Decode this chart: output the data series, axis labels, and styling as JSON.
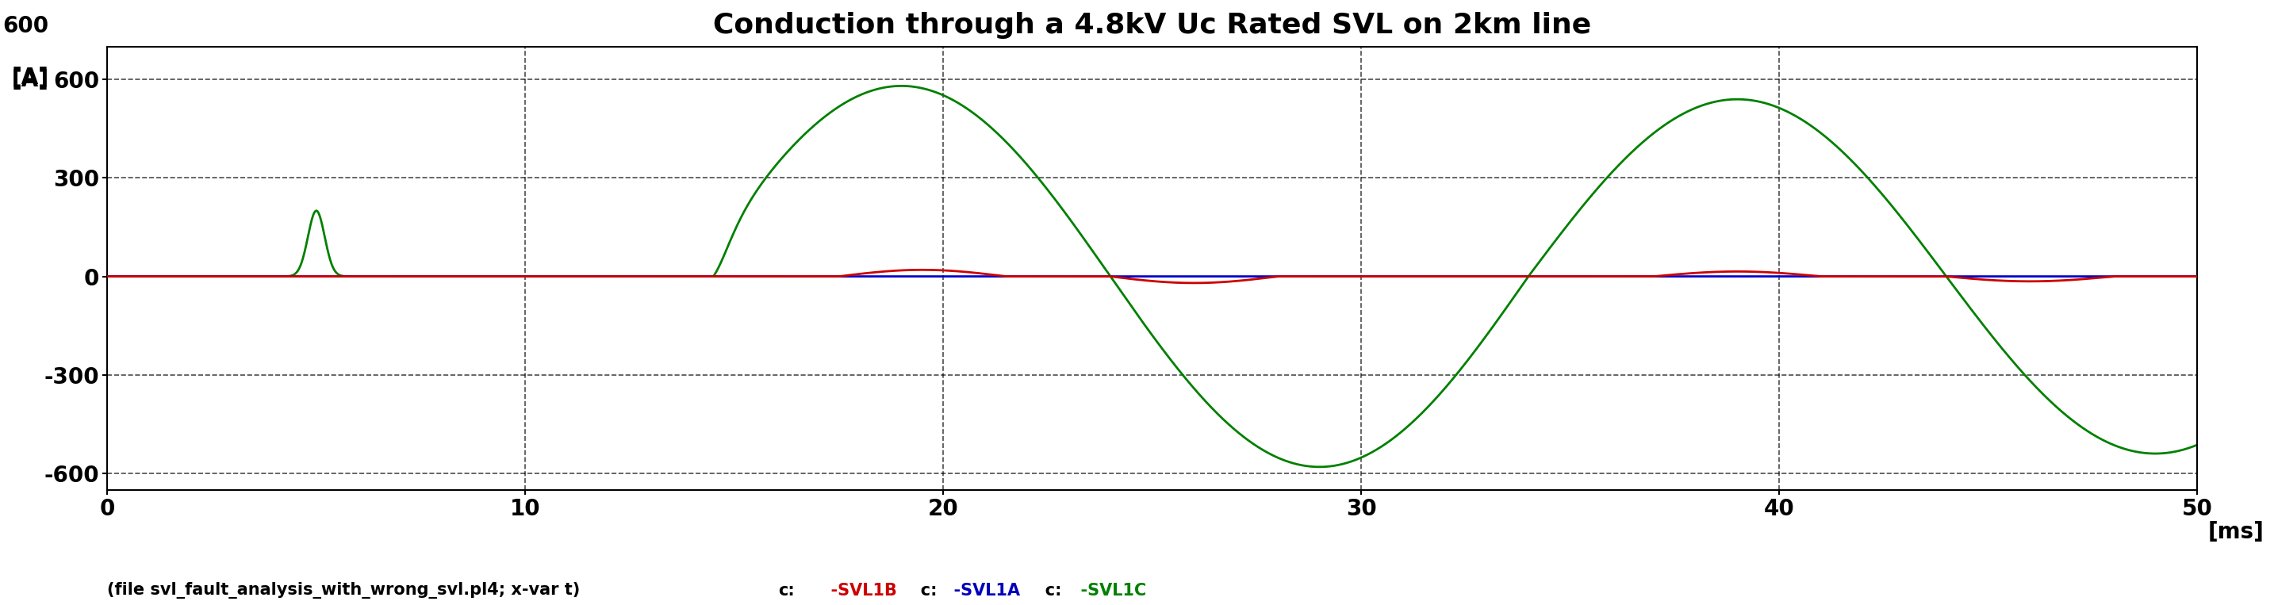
{
  "title": "Conduction through a 4.8kV Uc Rated SVL on 2km line",
  "xlabel": "[ms]",
  "ylabel_unit": "[A]",
  "ylabel_val": "600",
  "xlim": [
    0,
    50
  ],
  "ylim": [
    -650,
    700
  ],
  "yticks": [
    -600,
    -300,
    0,
    300,
    600
  ],
  "xticks": [
    0,
    10,
    20,
    30,
    40,
    50
  ],
  "ytick_labels": [
    "-600",
    "-300",
    "0",
    "300",
    "600"
  ],
  "xtick_labels": [
    "0",
    "10",
    "20",
    "30",
    "40",
    "50"
  ],
  "background_color": "#ffffff",
  "grid_color": "#000000",
  "title_fontsize": 26,
  "tick_fontsize": 20,
  "label_fontsize": 20,
  "legend_fontsize": 15,
  "line_green_color": "#008000",
  "line_red_color": "#cc0000",
  "line_blue_color": "#0000cc"
}
